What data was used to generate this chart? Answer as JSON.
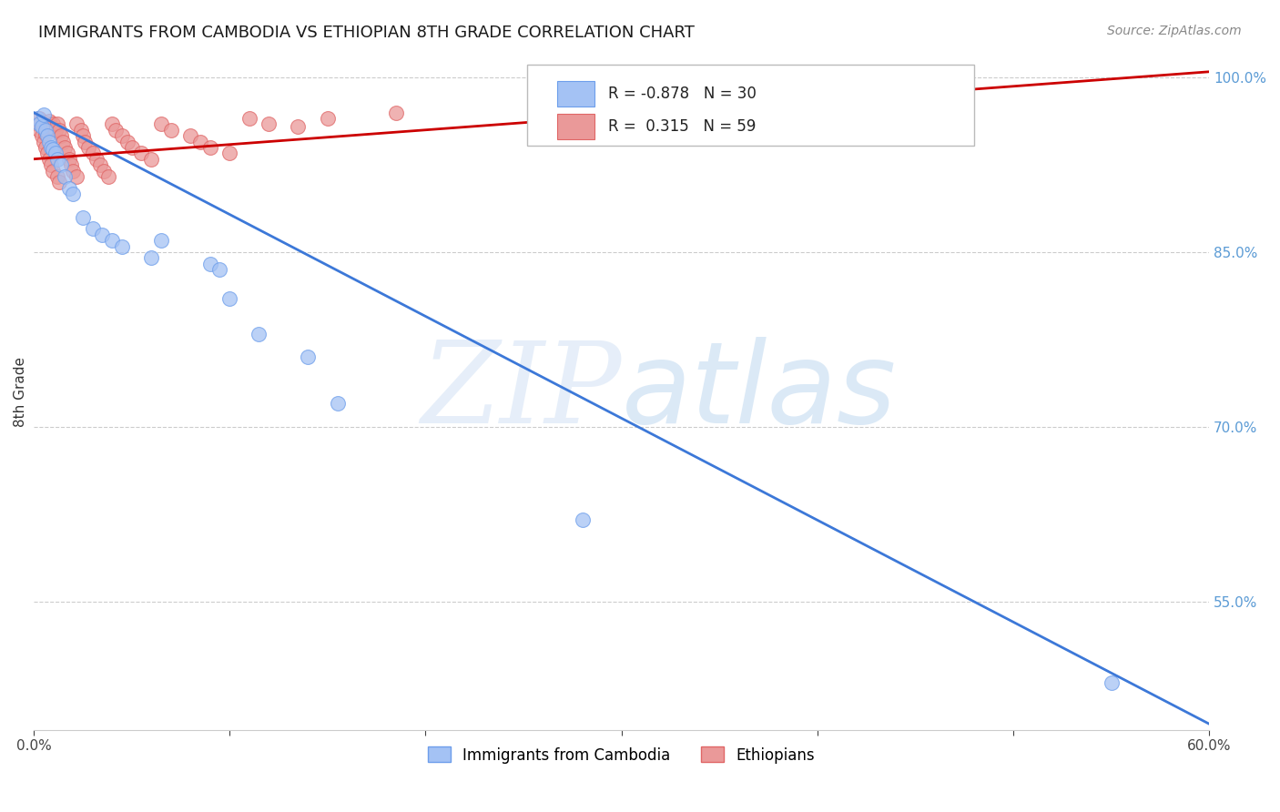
{
  "title": "IMMIGRANTS FROM CAMBODIA VS ETHIOPIAN 8TH GRADE CORRELATION CHART",
  "source": "Source: ZipAtlas.com",
  "ylabel": "8th Grade",
  "watermark_zip": "ZIP",
  "watermark_atlas": "atlas",
  "xlim": [
    0.0,
    0.6
  ],
  "ylim": [
    0.44,
    1.02
  ],
  "xtick_positions": [
    0.0,
    0.1,
    0.2,
    0.3,
    0.4,
    0.5,
    0.6
  ],
  "xticklabels": [
    "0.0%",
    "",
    "",
    "",
    "",
    "",
    "60.0%"
  ],
  "yticks_right": [
    0.55,
    0.7,
    0.85,
    1.0
  ],
  "ytick_labels_right": [
    "55.0%",
    "70.0%",
    "85.0%",
    "100.0%"
  ],
  "cambodia_color": "#a4c2f4",
  "ethiopian_color": "#ea9999",
  "cambodia_edge": "#6d9eeb",
  "ethiopian_edge": "#e06666",
  "trend_cambodia_color": "#3c78d8",
  "trend_ethiopian_color": "#cc0000",
  "R_cambodia": -0.878,
  "N_cambodia": 30,
  "R_ethiopian": 0.315,
  "N_ethiopian": 59,
  "legend_label_cambodia": "Immigrants from Cambodia",
  "legend_label_ethiopian": "Ethiopians",
  "cambodia_trend_x0": 0.0,
  "cambodia_trend_y0": 0.97,
  "cambodia_trend_x1": 0.6,
  "cambodia_trend_y1": 0.445,
  "ethiopian_trend_x0": 0.0,
  "ethiopian_trend_y0": 0.93,
  "ethiopian_trend_x1": 0.6,
  "ethiopian_trend_y1": 1.005,
  "cambodia_x": [
    0.002,
    0.003,
    0.004,
    0.005,
    0.006,
    0.007,
    0.008,
    0.009,
    0.01,
    0.011,
    0.012,
    0.014,
    0.016,
    0.018,
    0.02,
    0.025,
    0.03,
    0.035,
    0.04,
    0.045,
    0.06,
    0.065,
    0.09,
    0.095,
    0.1,
    0.115,
    0.14,
    0.155,
    0.28,
    0.55
  ],
  "cambodia_y": [
    0.965,
    0.96,
    0.958,
    0.968,
    0.955,
    0.95,
    0.945,
    0.94,
    0.938,
    0.935,
    0.93,
    0.925,
    0.915,
    0.905,
    0.9,
    0.88,
    0.87,
    0.865,
    0.86,
    0.855,
    0.845,
    0.86,
    0.84,
    0.835,
    0.81,
    0.78,
    0.76,
    0.72,
    0.62,
    0.48
  ],
  "ethiopian_x": [
    0.002,
    0.003,
    0.003,
    0.004,
    0.004,
    0.005,
    0.005,
    0.006,
    0.006,
    0.007,
    0.007,
    0.008,
    0.008,
    0.009,
    0.009,
    0.01,
    0.01,
    0.011,
    0.012,
    0.012,
    0.013,
    0.013,
    0.014,
    0.015,
    0.016,
    0.017,
    0.018,
    0.019,
    0.02,
    0.022,
    0.022,
    0.024,
    0.025,
    0.026,
    0.028,
    0.03,
    0.032,
    0.034,
    0.036,
    0.038,
    0.04,
    0.042,
    0.045,
    0.048,
    0.05,
    0.055,
    0.06,
    0.065,
    0.07,
    0.08,
    0.085,
    0.09,
    0.1,
    0.11,
    0.12,
    0.135,
    0.15,
    0.185,
    0.28
  ],
  "ethiopian_y": [
    0.96,
    0.965,
    0.955,
    0.962,
    0.95,
    0.958,
    0.945,
    0.952,
    0.94,
    0.96,
    0.935,
    0.963,
    0.93,
    0.958,
    0.925,
    0.96,
    0.92,
    0.955,
    0.96,
    0.915,
    0.955,
    0.91,
    0.95,
    0.945,
    0.94,
    0.935,
    0.93,
    0.925,
    0.92,
    0.96,
    0.915,
    0.955,
    0.95,
    0.945,
    0.94,
    0.935,
    0.93,
    0.925,
    0.92,
    0.915,
    0.96,
    0.955,
    0.95,
    0.945,
    0.94,
    0.935,
    0.93,
    0.96,
    0.955,
    0.95,
    0.945,
    0.94,
    0.935,
    0.965,
    0.96,
    0.958,
    0.965,
    0.97,
    0.975
  ]
}
